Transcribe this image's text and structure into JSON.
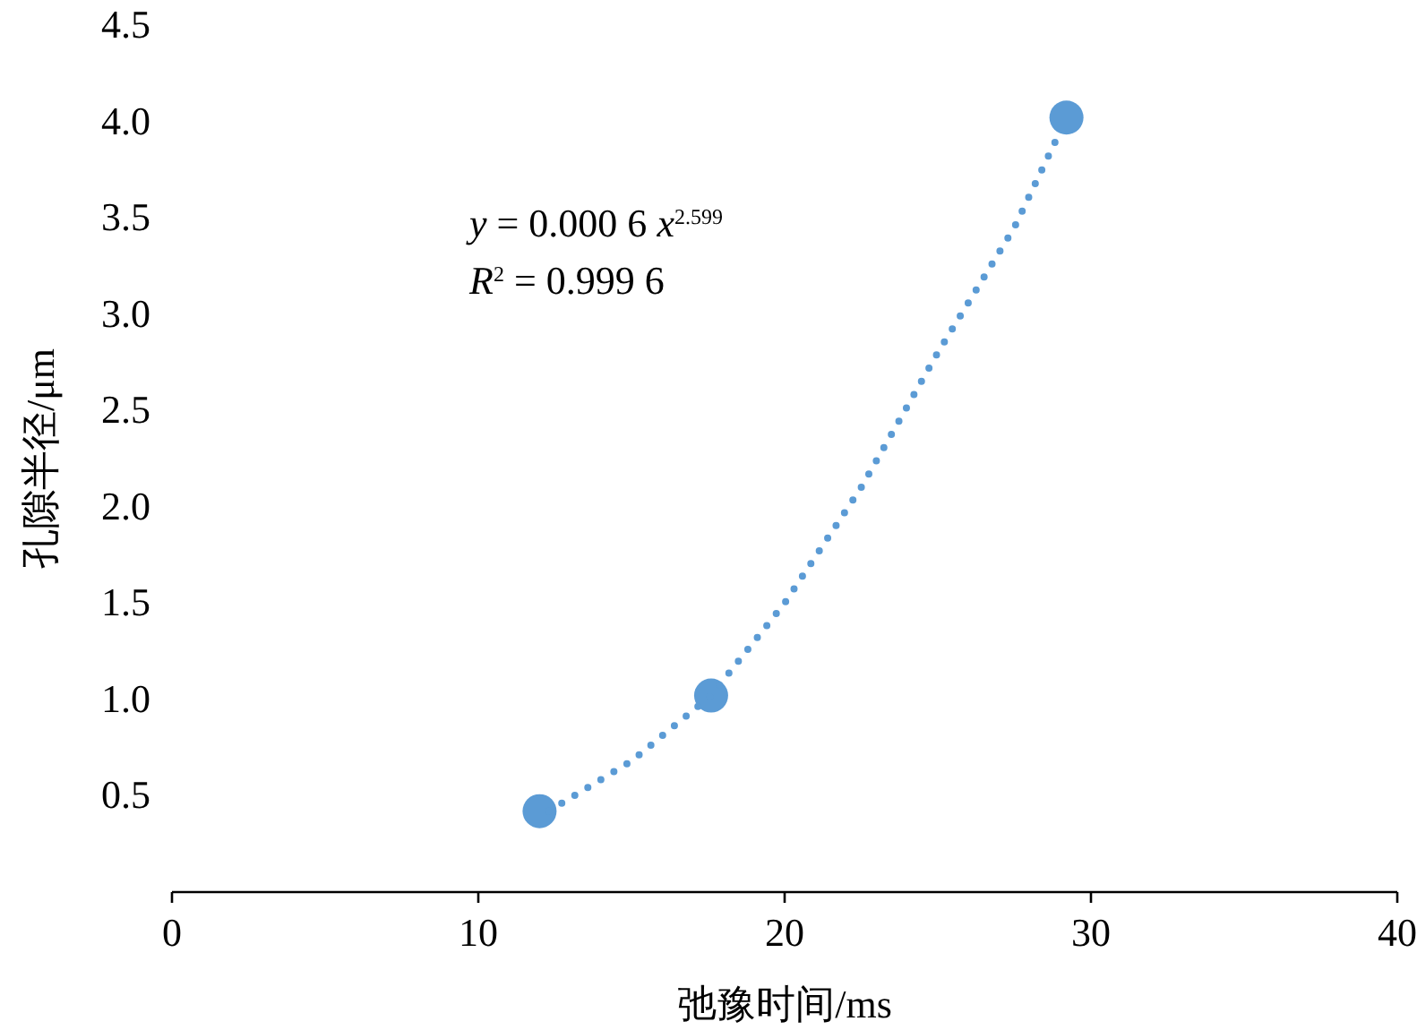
{
  "chart_data": {
    "type": "scatter",
    "xlabel": "弛豫时间/ms",
    "ylabel": "孔隙半径/μm",
    "xlim": [
      0,
      40
    ],
    "xticks": [
      0,
      10,
      20,
      30,
      40
    ],
    "ylim": [
      0,
      4.5
    ],
    "yticks": [
      {
        "value": 0.5,
        "label": "0.5"
      },
      {
        "value": 1,
        "label": "1.0"
      },
      {
        "value": 1.5,
        "label": "1.5"
      },
      {
        "value": 2,
        "label": "2.0"
      },
      {
        "value": 2.5,
        "label": "2.5"
      },
      {
        "value": 3,
        "label": "3.0"
      },
      {
        "value": 3.5,
        "label": "3.5"
      },
      {
        "value": 4,
        "label": "4.0"
      },
      {
        "value": 4.5,
        "label": "4.5"
      }
    ],
    "grid": false,
    "annotations": [
      "*y* = 0.000 6 *x*$^{2.599}$",
      "*R*$^{2}$ = 0.999 6"
    ],
    "series": [
      {
        "type": "scatter",
        "color": "#5b9bd5",
        "marker": "circle",
        "x": [
          12,
          17.6,
          29.2
        ],
        "values": [
          0.42,
          1.02,
          4.02
        ]
      },
      {
        "type": "line",
        "color": "#5b9bd5",
        "marker": "none",
        "line_style": "dotted",
        "x": [
          12.3,
          15,
          17.6,
          20,
          22.5,
          25,
          27.5,
          29
        ],
        "values": [
          0.42,
          0.68,
          1.02,
          1.5,
          2.1,
          2.8,
          3.45,
          3.95
        ]
      }
    ]
  }
}
